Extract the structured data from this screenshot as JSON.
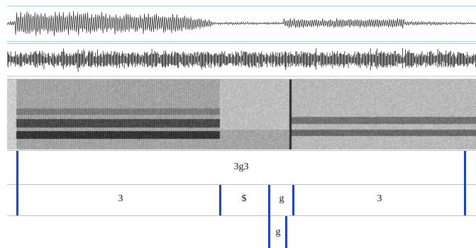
{
  "colors": {
    "boundary": "#1b3fd0",
    "panel_rule": "#9ed3e6",
    "tier_rule": "#bfbfbf",
    "signal": "#222222"
  },
  "tiers": [
    {
      "name": "",
      "intervals": [
        {
          "label": "3g3"
        }
      ]
    },
    {
      "name": "",
      "intervals": [
        {
          "label": "3"
        },
        {
          "label": "$"
        },
        {
          "label": "g"
        },
        {
          "label": "3"
        }
      ]
    },
    {
      "name": "",
      "intervals": [
        {
          "label": "g"
        }
      ]
    }
  ]
}
